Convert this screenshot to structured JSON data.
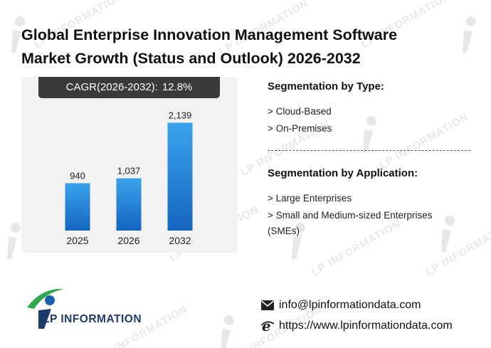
{
  "header": {
    "title_line1": "Global Enterprise Innovation Management Software",
    "title_line2": "Market Growth (Status and Outlook) 2026-2032"
  },
  "cagr": {
    "label": "CAGR(2026-2032):",
    "value": "12.8%"
  },
  "chart_data": {
    "type": "bar",
    "categories": [
      "2025",
      "2026",
      "2032"
    ],
    "values": [
      940,
      1037,
      2139
    ],
    "data_labels": [
      "940",
      "1,037",
      "2,139"
    ],
    "title": "",
    "xlabel": "",
    "ylabel": "",
    "ylim": [
      0,
      2400
    ],
    "grid": false,
    "legend": "none",
    "bar_color_top": "#3aa3ec",
    "bar_color_bottom": "#1565c0"
  },
  "segmentation": {
    "type_title": "Segmentation by Type:",
    "type_items": [
      "> Cloud-Based",
      "> On-Premises"
    ],
    "application_title": "Segmentation by Application:",
    "application_items": [
      "> Large Enterprises",
      "> Small and Medium-sized Enterprises",
      "(SMEs)"
    ]
  },
  "branding": {
    "logo_icon": "lp-information-logo-icon",
    "watermark_text": "LP INFORMATION",
    "name": "LP INFORMATION"
  },
  "contact": {
    "email_icon": "envelope-icon",
    "email": "info@lpinformationdata.com",
    "web_icon": "browser-e-icon",
    "website": "https://www.lpinformationdata.com"
  }
}
